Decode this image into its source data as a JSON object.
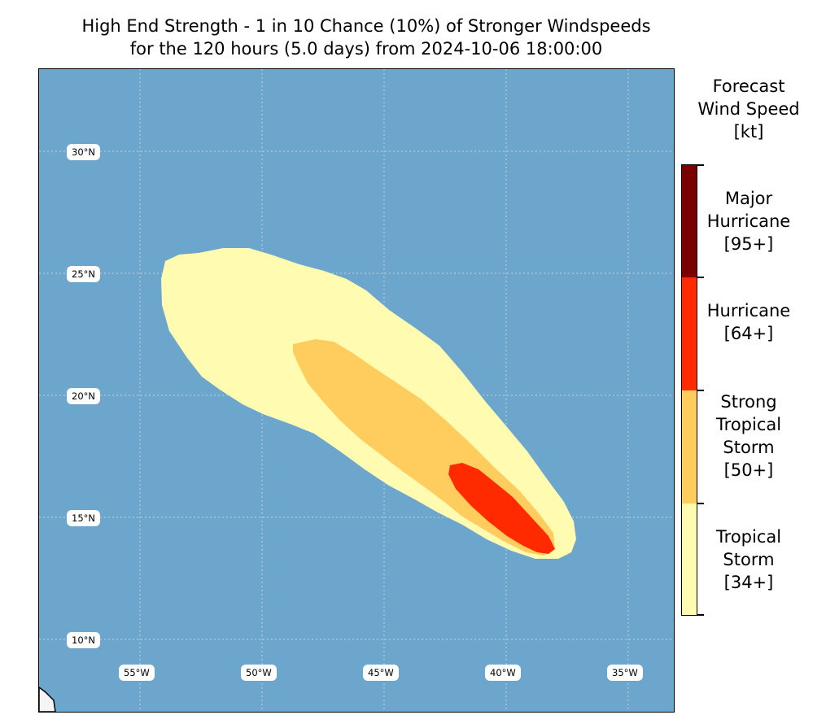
{
  "title": {
    "line1": "High End Strength - 1 in 10 Chance (10%) of Stronger Windspeeds",
    "line2": "for the 120 hours (5.0 days) from 2024-10-06 18:00:00"
  },
  "map": {
    "lat_labels": [
      "30°N",
      "25°N",
      "20°N",
      "15°N",
      "10°N"
    ],
    "lon_labels": [
      "55°W",
      "50°W",
      "45°W",
      "40°W",
      "35°W"
    ],
    "ocean_color": "#6ca6cd",
    "land_color": "#f5f5f5"
  },
  "colorbar": {
    "title_line1": "Forecast",
    "title_line2": "Wind Speed",
    "title_line3": "[kt]",
    "categories": [
      {
        "lines": [
          "Major",
          "Hurricane",
          "[95+]"
        ],
        "color": "#7a0000"
      },
      {
        "lines": [
          "Hurricane",
          "[64+]"
        ],
        "color": "#ff2a00"
      },
      {
        "lines": [
          "Strong",
          "Tropical",
          "Storm",
          "[50+]"
        ],
        "color": "#ffcc5e"
      },
      {
        "lines": [
          "Tropical",
          "Storm",
          "[34+]"
        ],
        "color": "#fffcb2"
      }
    ]
  }
}
